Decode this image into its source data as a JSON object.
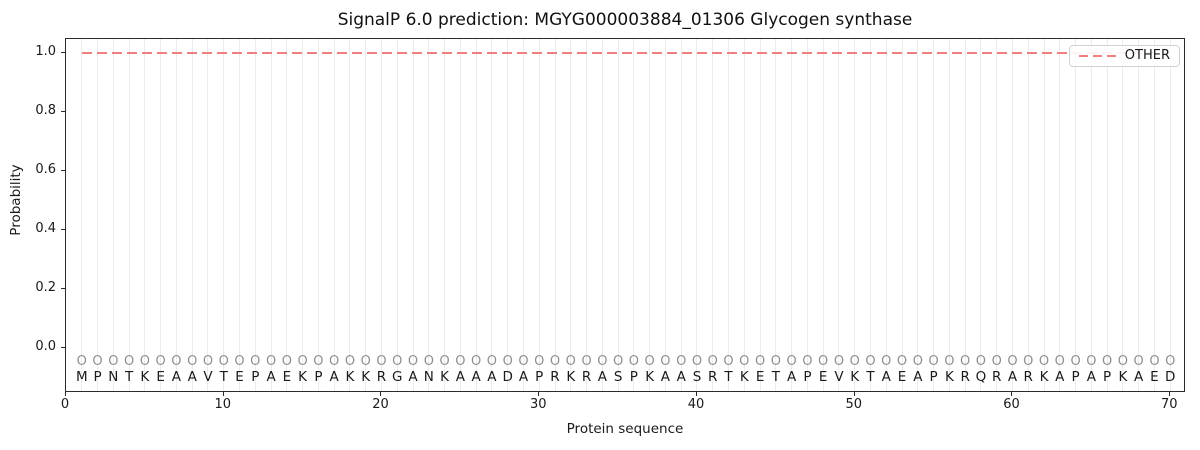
{
  "chart_data": {
    "type": "line",
    "title": "SignalP 6.0 prediction: MGYG000003884_01306 Glycogen synthase",
    "xlabel": "Protein sequence",
    "ylabel": "Probability",
    "xlim": [
      0,
      71
    ],
    "ylim": [
      -0.15,
      1.05
    ],
    "xticks": [
      0,
      10,
      20,
      30,
      40,
      50,
      60,
      70
    ],
    "yticks": [
      "0.0",
      "0.2",
      "0.4",
      "0.6",
      "0.8",
      "1.0"
    ],
    "grid": "light vertical gridline at every residue position 1-70",
    "legend_position": "upper right",
    "series": [
      {
        "name": "OTHER",
        "style": "dashed",
        "color": "#f08080",
        "x_start": 1,
        "x_end": 70,
        "n_points": 70,
        "y_constant": 1.0
      }
    ],
    "sequence": "MPNTKEAAVTEPAEKPAKKRGANKAAADAPRKRASPKAASRTKETAPEVKTAEAPKRQRARKAPAPKAED",
    "residue_marker": "O",
    "n_residues": 70,
    "colors": {
      "line": "#f08080",
      "grid": "#ebebeb",
      "marker_text": "#909090",
      "letter_text": "#1a1a1a",
      "spine": "#2b2b2b",
      "background": "#ffffff"
    }
  }
}
